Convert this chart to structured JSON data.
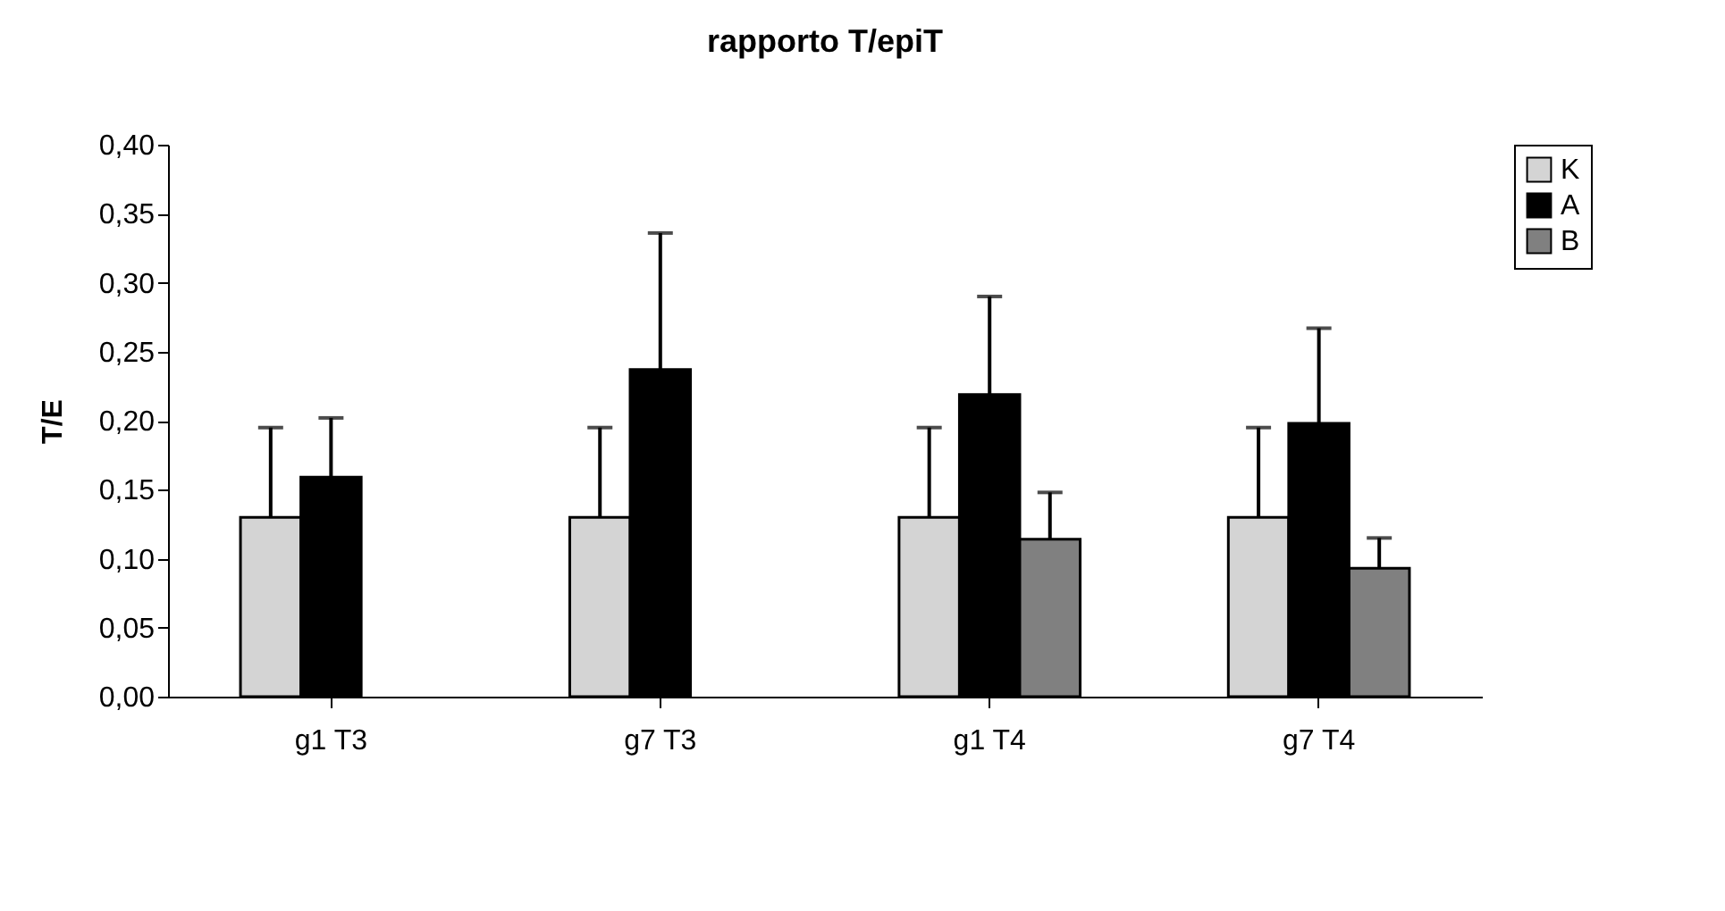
{
  "chart_data": {
    "type": "bar",
    "title": "rapporto T/epiT",
    "ylabel": "T/E",
    "categories": [
      "g1 T3",
      "g7 T3",
      "g1 T4",
      "g7 T4"
    ],
    "series": [
      {
        "name": "K",
        "color": "#d4d4d4",
        "values": [
          0.13,
          0.13,
          0.13,
          0.13
        ],
        "errors": [
          [
            0.13,
            0.195
          ],
          [
            0.13,
            0.195
          ],
          [
            0.13,
            0.195
          ],
          [
            0.13,
            0.195
          ]
        ]
      },
      {
        "name": "A",
        "color": "#000000",
        "values": [
          0.159,
          0.237,
          0.219,
          0.198
        ],
        "errors": [
          [
            0.159,
            0.202
          ],
          [
            0.237,
            0.336
          ],
          [
            0.219,
            0.29
          ],
          [
            0.198,
            0.267
          ]
        ]
      },
      {
        "name": "B",
        "color": "#808080",
        "values": [
          null,
          null,
          0.114,
          0.093
        ],
        "errors": [
          null,
          null,
          [
            0.114,
            0.148
          ],
          [
            0.093,
            0.115
          ]
        ]
      }
    ],
    "ylim": [
      0,
      0.4
    ],
    "yticks": [
      {
        "value": 0,
        "label": "0,00"
      },
      {
        "value": 0.05,
        "label": "0,05"
      },
      {
        "value": 0.1,
        "label": "0,10"
      },
      {
        "value": 0.15,
        "label": "0,15"
      },
      {
        "value": 0.2,
        "label": "0,20"
      },
      {
        "value": 0.25,
        "label": "0,25"
      },
      {
        "value": 0.3,
        "label": "0,30"
      },
      {
        "value": 0.35,
        "label": "0,35"
      },
      {
        "value": 0.4,
        "label": "0,40"
      }
    ],
    "grid": false,
    "legend": "right"
  }
}
